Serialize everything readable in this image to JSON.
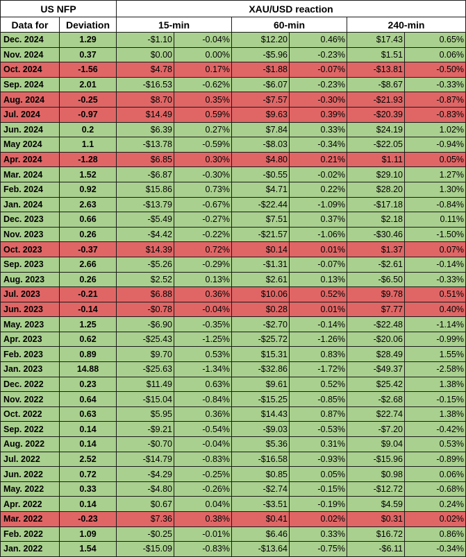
{
  "header": {
    "group_left": "US NFP",
    "group_right": "XAU/USD reaction",
    "col_date": "Data for",
    "col_dev": "Deviation",
    "col_15": "15-min",
    "col_60": "60-min",
    "col_240": "240-min"
  },
  "colors": {
    "positive_row": "#a9d08e",
    "negative_row": "#e06666"
  },
  "rows": [
    {
      "date": "Dec. 2024",
      "dev": "1.29",
      "d15": "-$1.10",
      "p15": "-0.04%",
      "d60": "$12.20",
      "p60": "0.46%",
      "d240": "$17.43",
      "p240": "0.65%",
      "neg": false
    },
    {
      "date": "Nov. 2024",
      "dev": "0.37",
      "d15": "$0.00",
      "p15": "0.00%",
      "d60": "-$5.96",
      "p60": "-0.23%",
      "d240": "$1.51",
      "p240": "0.06%",
      "neg": false
    },
    {
      "date": "Oct. 2024",
      "dev": "-1.56",
      "d15": "$4.78",
      "p15": "0.17%",
      "d60": "-$1.88",
      "p60": "-0.07%",
      "d240": "-$13.81",
      "p240": "-0.50%",
      "neg": true
    },
    {
      "date": "Sep. 2024",
      "dev": "2.01",
      "d15": "-$16.53",
      "p15": "-0.62%",
      "d60": "-$6.07",
      "p60": "-0.23%",
      "d240": "-$8.67",
      "p240": "-0.33%",
      "neg": false
    },
    {
      "date": "Aug. 2024",
      "dev": "-0.25",
      "d15": "$8.70",
      "p15": "0.35%",
      "d60": "-$7.57",
      "p60": "-0.30%",
      "d240": "-$21.93",
      "p240": "-0.87%",
      "neg": true
    },
    {
      "date": "Jul. 2024",
      "dev": "-0.97",
      "d15": "$14.49",
      "p15": "0.59%",
      "d60": "$9.63",
      "p60": "0.39%",
      "d240": "-$20.39",
      "p240": "-0.83%",
      "neg": true
    },
    {
      "date": "Jun. 2024",
      "dev": "0.2",
      "d15": "$6.39",
      "p15": "0.27%",
      "d60": "$7.84",
      "p60": "0.33%",
      "d240": "$24.19",
      "p240": "1.02%",
      "neg": false
    },
    {
      "date": "May 2024",
      "dev": "1.1",
      "d15": "-$13.78",
      "p15": "-0.59%",
      "d60": "-$8.03",
      "p60": "-0.34%",
      "d240": "-$22.05",
      "p240": "-0.94%",
      "neg": false
    },
    {
      "date": "Apr. 2024",
      "dev": "-1.28",
      "d15": "$6.85",
      "p15": "0.30%",
      "d60": "$4.80",
      "p60": "0.21%",
      "d240": "$1.11",
      "p240": "0.05%",
      "neg": true
    },
    {
      "date": "Mar. 2024",
      "dev": "1.52",
      "d15": "-$6.87",
      "p15": "-0.30%",
      "d60": "-$0.55",
      "p60": "-0.02%",
      "d240": "$29.10",
      "p240": "1.27%",
      "neg": false
    },
    {
      "date": "Feb. 2024",
      "dev": "0.92",
      "d15": "$15.86",
      "p15": "0.73%",
      "d60": "$4.71",
      "p60": "0.22%",
      "d240": "$28.20",
      "p240": "1.30%",
      "neg": false
    },
    {
      "date": "Jan. 2024",
      "dev": "2.63",
      "d15": "-$13.79",
      "p15": "-0.67%",
      "d60": "-$22.44",
      "p60": "-1.09%",
      "d240": "-$17.18",
      "p240": "-0.84%",
      "neg": false
    },
    {
      "date": "Dec. 2023",
      "dev": "0.66",
      "d15": "-$5.49",
      "p15": "-0.27%",
      "d60": "$7.51",
      "p60": "0.37%",
      "d240": "$2.18",
      "p240": "0.11%",
      "neg": false
    },
    {
      "date": "Nov. 2023",
      "dev": "0.26",
      "d15": "-$4.42",
      "p15": "-0.22%",
      "d60": "-$21.57",
      "p60": "-1.06%",
      "d240": "-$30.46",
      "p240": "-1.50%",
      "neg": false
    },
    {
      "date": "Oct. 2023",
      "dev": "-0.37",
      "d15": "$14.39",
      "p15": "0.72%",
      "d60": "$0.14",
      "p60": "0.01%",
      "d240": "$1.37",
      "p240": "0.07%",
      "neg": true
    },
    {
      "date": "Sep. 2023",
      "dev": "2.66",
      "d15": "-$5.26",
      "p15": "-0.29%",
      "d60": "-$1.31",
      "p60": "-0.07%",
      "d240": "-$2.61",
      "p240": "-0.14%",
      "neg": false
    },
    {
      "date": "Aug. 2023",
      "dev": "0.26",
      "d15": "$2.52",
      "p15": "0.13%",
      "d60": "$2.61",
      "p60": "0.13%",
      "d240": "-$6.50",
      "p240": "-0.33%",
      "neg": false
    },
    {
      "date": "Jul. 2023",
      "dev": "-0.21",
      "d15": "$6.88",
      "p15": "0.36%",
      "d60": "$10.06",
      "p60": "0.52%",
      "d240": "$9.78",
      "p240": "0.51%",
      "neg": true
    },
    {
      "date": "Jun. 2023",
      "dev": "-0.14",
      "d15": "-$0.78",
      "p15": "-0.04%",
      "d60": "$0.28",
      "p60": "0.01%",
      "d240": "$7.77",
      "p240": "0.40%",
      "neg": true
    },
    {
      "date": "May. 2023",
      "dev": "1.25",
      "d15": "-$6.90",
      "p15": "-0.35%",
      "d60": "-$2.70",
      "p60": "-0.14%",
      "d240": "-$22.48",
      "p240": "-1.14%",
      "neg": false
    },
    {
      "date": "Apr. 2023",
      "dev": "0.62",
      "d15": "-$25.43",
      "p15": "-1.25%",
      "d60": "-$25.72",
      "p60": "-1.26%",
      "d240": "-$20.06",
      "p240": "-0.99%",
      "neg": false
    },
    {
      "date": "Feb. 2023",
      "dev": "0.89",
      "d15": "$9.70",
      "p15": "0.53%",
      "d60": "$15.31",
      "p60": "0.83%",
      "d240": "$28.49",
      "p240": "1.55%",
      "neg": false
    },
    {
      "date": "Jan. 2023",
      "dev": "14.88",
      "d15": "-$25.63",
      "p15": "-1.34%",
      "d60": "-$32.86",
      "p60": "-1.72%",
      "d240": "-$49.37",
      "p240": "-2.58%",
      "neg": false
    },
    {
      "date": "Dec. 2022",
      "dev": "0.23",
      "d15": "$11.49",
      "p15": "0.63%",
      "d60": "$9.61",
      "p60": "0.52%",
      "d240": "$25.42",
      "p240": "1.38%",
      "neg": false
    },
    {
      "date": "Nov. 2022",
      "dev": "0.64",
      "d15": "-$15.04",
      "p15": "-0.84%",
      "d60": "-$15.25",
      "p60": "-0.85%",
      "d240": "-$2.68",
      "p240": "-0.15%",
      "neg": false
    },
    {
      "date": "Oct. 2022",
      "dev": "0.63",
      "d15": "$5.95",
      "p15": "0.36%",
      "d60": "$14.43",
      "p60": "0.87%",
      "d240": "$22.74",
      "p240": "1.38%",
      "neg": false
    },
    {
      "date": "Sep. 2022",
      "dev": "0.14",
      "d15": "-$9.21",
      "p15": "-0.54%",
      "d60": "-$9.03",
      "p60": "-0.53%",
      "d240": "-$7.20",
      "p240": "-0.42%",
      "neg": false
    },
    {
      "date": "Aug. 2022",
      "dev": "0.14",
      "d15": "-$0.70",
      "p15": "-0.04%",
      "d60": "$5.36",
      "p60": "0.31%",
      "d240": "$9.04",
      "p240": "0.53%",
      "neg": false
    },
    {
      "date": "Jul. 2022",
      "dev": "2.52",
      "d15": "-$14.79",
      "p15": "-0.83%",
      "d60": "-$16.58",
      "p60": "-0.93%",
      "d240": "-$15.96",
      "p240": "-0.89%",
      "neg": false
    },
    {
      "date": "Jun. 2022",
      "dev": "0.72",
      "d15": "-$4.29",
      "p15": "-0.25%",
      "d60": "$0.85",
      "p60": "0.05%",
      "d240": "$0.98",
      "p240": "0.06%",
      "neg": false
    },
    {
      "date": "May. 2022",
      "dev": "0.33",
      "d15": "-$4.80",
      "p15": "-0.26%",
      "d60": "-$2.74",
      "p60": "-0.15%",
      "d240": "-$12.72",
      "p240": "-0.68%",
      "neg": false
    },
    {
      "date": "Apr. 2022",
      "dev": "0.14",
      "d15": "$0.67",
      "p15": "0.04%",
      "d60": "-$3.51",
      "p60": "-0.19%",
      "d240": "$4.59",
      "p240": "0.24%",
      "neg": false
    },
    {
      "date": "Mar. 2022",
      "dev": "-0.23",
      "d15": "$7.36",
      "p15": "0.38%",
      "d60": "$0.41",
      "p60": "0.02%",
      "d240": "$0.31",
      "p240": "0.02%",
      "neg": true
    },
    {
      "date": "Feb. 2022",
      "dev": "1.09",
      "d15": "-$0.25",
      "p15": "-0.01%",
      "d60": "$6.46",
      "p60": "0.33%",
      "d240": "$16.72",
      "p240": "0.86%",
      "neg": false
    },
    {
      "date": "Jan. 2022",
      "dev": "1.54",
      "d15": "-$15.09",
      "p15": "-0.83%",
      "d60": "-$13.64",
      "p60": "-0.75%",
      "d240": "-$6.11",
      "p240": "-0.34%",
      "neg": false
    }
  ]
}
